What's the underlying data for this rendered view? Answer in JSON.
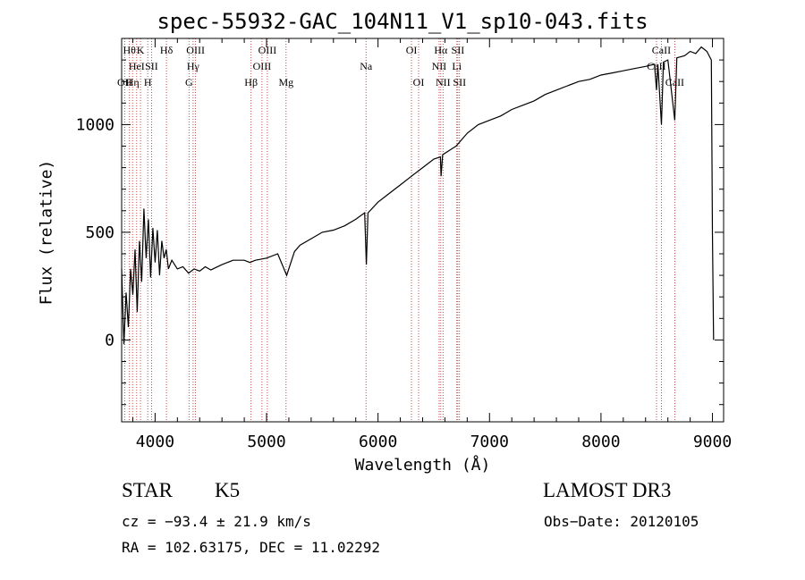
{
  "chart_data": {
    "type": "line",
    "title": "spec-55932-GAC_104N11_V1_sp10-043.fits",
    "xlabel": "Wavelength (Å)",
    "ylabel": "Flux (relative)",
    "xlim": [
      3700,
      9100
    ],
    "ylim": [
      -380,
      1400
    ],
    "x_ticks": [
      4000,
      5000,
      6000,
      7000,
      8000,
      9000
    ],
    "x_tick_labels": [
      "4000",
      "5000",
      "6000",
      "7000",
      "8000",
      "9000"
    ],
    "y_ticks": [
      0,
      500,
      1000
    ],
    "y_tick_labels": [
      "0",
      "500",
      "1000"
    ],
    "series": [
      {
        "name": "spectrum",
        "color": "#000000",
        "points": [
          [
            3700,
            330
          ],
          [
            3720,
            -20
          ],
          [
            3740,
            220
          ],
          [
            3760,
            60
          ],
          [
            3780,
            330
          ],
          [
            3800,
            210
          ],
          [
            3820,
            420
          ],
          [
            3840,
            130
          ],
          [
            3860,
            460
          ],
          [
            3880,
            270
          ],
          [
            3900,
            610
          ],
          [
            3920,
            380
          ],
          [
            3940,
            560
          ],
          [
            3960,
            290
          ],
          [
            3980,
            520
          ],
          [
            4000,
            360
          ],
          [
            4020,
            510
          ],
          [
            4040,
            300
          ],
          [
            4060,
            460
          ],
          [
            4080,
            380
          ],
          [
            4100,
            420
          ],
          [
            4120,
            330
          ],
          [
            4150,
            370
          ],
          [
            4200,
            330
          ],
          [
            4250,
            340
          ],
          [
            4300,
            310
          ],
          [
            4350,
            330
          ],
          [
            4400,
            320
          ],
          [
            4450,
            340
          ],
          [
            4500,
            325
          ],
          [
            4600,
            350
          ],
          [
            4700,
            370
          ],
          [
            4800,
            370
          ],
          [
            4850,
            360
          ],
          [
            4900,
            370
          ],
          [
            5000,
            380
          ],
          [
            5100,
            400
          ],
          [
            5180,
            300
          ],
          [
            5250,
            410
          ],
          [
            5300,
            440
          ],
          [
            5400,
            470
          ],
          [
            5500,
            500
          ],
          [
            5600,
            510
          ],
          [
            5700,
            530
          ],
          [
            5800,
            560
          ],
          [
            5880,
            590
          ],
          [
            5895,
            350
          ],
          [
            5910,
            590
          ],
          [
            6000,
            640
          ],
          [
            6100,
            680
          ],
          [
            6200,
            720
          ],
          [
            6300,
            760
          ],
          [
            6400,
            800
          ],
          [
            6500,
            840
          ],
          [
            6560,
            850
          ],
          [
            6565,
            760
          ],
          [
            6580,
            860
          ],
          [
            6700,
            900
          ],
          [
            6800,
            960
          ],
          [
            6900,
            1000
          ],
          [
            7000,
            1020
          ],
          [
            7100,
            1040
          ],
          [
            7200,
            1070
          ],
          [
            7300,
            1090
          ],
          [
            7400,
            1110
          ],
          [
            7500,
            1140
          ],
          [
            7600,
            1160
          ],
          [
            7700,
            1180
          ],
          [
            7800,
            1200
          ],
          [
            7900,
            1210
          ],
          [
            8000,
            1230
          ],
          [
            8100,
            1240
          ],
          [
            8200,
            1250
          ],
          [
            8300,
            1260
          ],
          [
            8400,
            1270
          ],
          [
            8480,
            1280
          ],
          [
            8498,
            1160
          ],
          [
            8510,
            1280
          ],
          [
            8542,
            1000
          ],
          [
            8560,
            1290
          ],
          [
            8600,
            1300
          ],
          [
            8662,
            1020
          ],
          [
            8680,
            1310
          ],
          [
            8750,
            1320
          ],
          [
            8800,
            1340
          ],
          [
            8850,
            1330
          ],
          [
            8900,
            1360
          ],
          [
            8950,
            1340
          ],
          [
            8990,
            1300
          ],
          [
            9000,
            500
          ],
          [
            9010,
            0
          ]
        ]
      }
    ],
    "lines": [
      {
        "wavelength": 3727,
        "labels": [
          "OΙΙ",
          ""
        ],
        "row": 3
      },
      {
        "wavelength": 3770,
        "labels": [
          "Hθ"
        ],
        "row": 1
      },
      {
        "wavelength": 3798,
        "labels": [
          "Hη"
        ],
        "row": 3
      },
      {
        "wavelength": 3835,
        "labels": [
          "HeΙ"
        ],
        "row": 2
      },
      {
        "wavelength": 3869,
        "labels": [
          "K"
        ],
        "row": 1
      },
      {
        "wavelength": 3934,
        "labels": [
          "H"
        ],
        "row": 3
      },
      {
        "wavelength": 3968,
        "labels": [
          "SΙΙ"
        ],
        "row": 2
      },
      {
        "wavelength": 4102,
        "labels": [
          "Hδ"
        ],
        "row": 1
      },
      {
        "wavelength": 4304,
        "labels": [
          "G"
        ],
        "row": 3
      },
      {
        "wavelength": 4341,
        "labels": [
          "Hγ"
        ],
        "row": 2
      },
      {
        "wavelength": 4363,
        "labels": [
          "OΙΙΙ"
        ],
        "row": 1
      },
      {
        "wavelength": 4861,
        "labels": [
          "Hβ"
        ],
        "row": 3
      },
      {
        "wavelength": 4959,
        "labels": [
          "OΙΙΙ"
        ],
        "row": 2
      },
      {
        "wavelength": 5007,
        "labels": [
          "OΙΙΙ"
        ],
        "row": 1
      },
      {
        "wavelength": 5175,
        "labels": [
          "Mg"
        ],
        "row": 3
      },
      {
        "wavelength": 5892,
        "labels": [
          "Na"
        ],
        "row": 2
      },
      {
        "wavelength": 6300,
        "labels": [
          "OΙ"
        ],
        "row": 1
      },
      {
        "wavelength": 6364,
        "labels": [
          "OΙ"
        ],
        "row": 3
      },
      {
        "wavelength": 6548,
        "labels": [
          "NΙΙ"
        ],
        "row": 2
      },
      {
        "wavelength": 6563,
        "labels": [
          "Hα"
        ],
        "row": 1
      },
      {
        "wavelength": 6583,
        "labels": [
          "NΙΙ"
        ],
        "row": 3
      },
      {
        "wavelength": 6707,
        "labels": [
          "Li"
        ],
        "row": 2
      },
      {
        "wavelength": 6716,
        "labels": [
          "SΙΙ"
        ],
        "row": 1
      },
      {
        "wavelength": 6731,
        "labels": [
          "SΙΙ"
        ],
        "row": 3
      },
      {
        "wavelength": 8498,
        "labels": [
          "CaΙΙ"
        ],
        "row": 2
      },
      {
        "wavelength": 8542,
        "labels": [
          "CaΙΙ"
        ],
        "row": 1
      },
      {
        "wavelength": 8662,
        "labels": [
          "CaΙΙ"
        ],
        "row": 3
      }
    ]
  },
  "info": {
    "object_class": "STAR",
    "subclass": "K5",
    "survey": "LAMOST DR3",
    "cz": "cz = −93.4 ± 21.9 km/s",
    "obs_date": "Obs−Date: 20120105",
    "coords": "RA = 102.63175, DEC =  11.02292"
  },
  "colors": {
    "axis": "#000000",
    "spectrum": "#000000",
    "line_marker": "#b22222"
  }
}
